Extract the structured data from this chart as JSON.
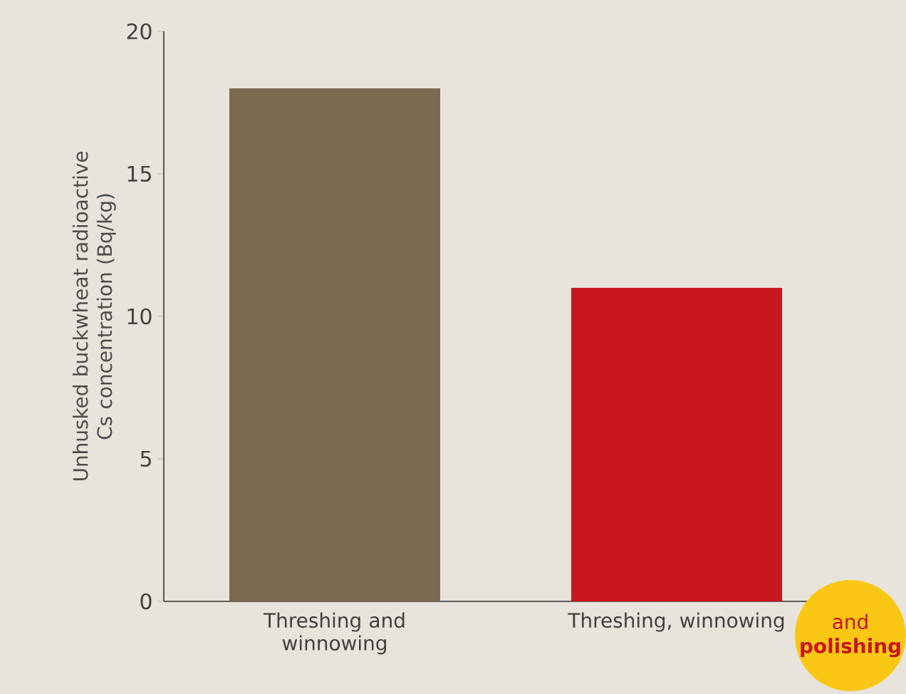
{
  "chart_data": {
    "type": "bar",
    "ylabel": "Unhusked buckwheat radioactive Cs concentration (Bq/kg)",
    "categories": [
      "Threshing and winnowing",
      "Threshing, winnowing"
    ],
    "values": [
      18,
      11
    ],
    "colors": [
      "#7a6a50",
      "#c8161e"
    ],
    "ylim": [
      0,
      20
    ],
    "yticks": [
      0,
      5,
      10,
      15,
      20
    ],
    "grid": false,
    "annotations": [
      "and **polishing**"
    ]
  }
}
